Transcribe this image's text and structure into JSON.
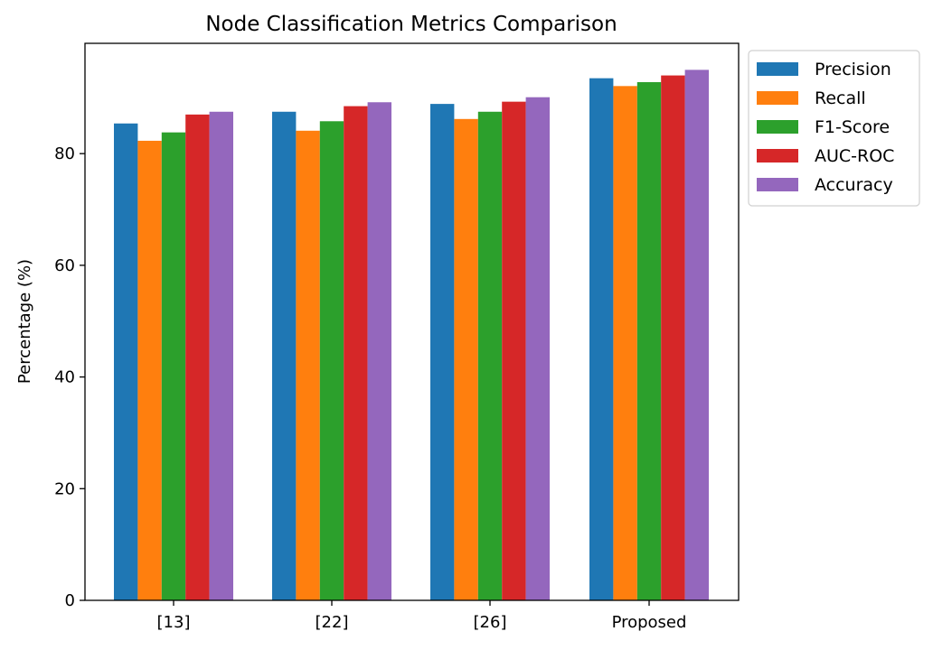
{
  "chart_data": {
    "type": "bar",
    "title": "Node Classification Metrics Comparison",
    "xlabel": "",
    "ylabel": "Percentage (%)",
    "categories": [
      "[13]",
      "[22]",
      "[26]",
      "Proposed"
    ],
    "series": [
      {
        "name": "Precision",
        "color": "#1f77b4",
        "values": [
          85.4,
          87.5,
          88.9,
          93.5
        ]
      },
      {
        "name": "Recall",
        "color": "#ff7f0e",
        "values": [
          82.3,
          84.1,
          86.2,
          92.1
        ]
      },
      {
        "name": "F1-Score",
        "color": "#2ca02c",
        "values": [
          83.8,
          85.8,
          87.5,
          92.8
        ]
      },
      {
        "name": "AUC-ROC",
        "color": "#d62728",
        "values": [
          87.0,
          88.5,
          89.3,
          94.0
        ]
      },
      {
        "name": "Accuracy",
        "color": "#9467bd",
        "values": [
          87.5,
          89.2,
          90.1,
          95.0
        ]
      }
    ],
    "ylim": [
      0,
      99.75
    ],
    "yticks": [
      "0",
      "20",
      "40",
      "60",
      "80"
    ],
    "grid": false,
    "legend_position": "outside-top-right"
  }
}
